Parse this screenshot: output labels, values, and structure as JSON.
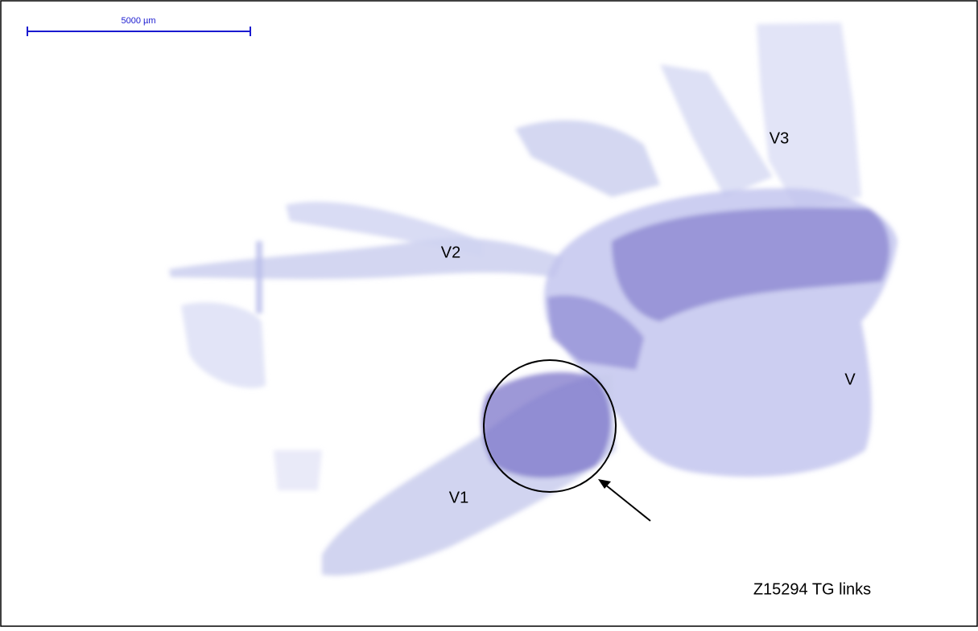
{
  "scale_bar": {
    "label": "5000 µm"
  },
  "labels": [
    "V3",
    "V2",
    "V",
    "V1"
  ],
  "caption": "Z15294 TG links"
}
